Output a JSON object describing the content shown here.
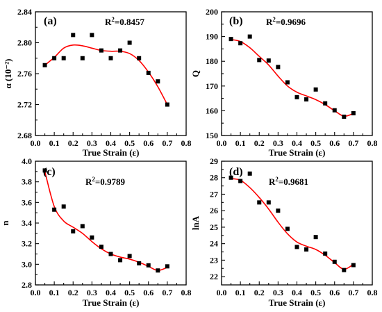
{
  "chart_data": [
    {
      "panel_label": "(a)",
      "type": "scatter",
      "xlabel": "True Strain (ε)",
      "ylabel": "α (10⁻²)",
      "r2_label": "R",
      "r2_sup": "2",
      "r2_value": "=0.8457",
      "xlim": [
        0.0,
        0.8
      ],
      "ylim": [
        2.68,
        2.84
      ],
      "xticks": [
        0.0,
        0.1,
        0.2,
        0.3,
        0.4,
        0.5,
        0.6,
        0.7,
        0.8
      ],
      "yticks": [
        2.68,
        2.72,
        2.76,
        2.8,
        2.84
      ],
      "xtick_labels": [
        "0.0",
        "0.1",
        "0.2",
        "0.3",
        "0.4",
        "0.5",
        "0.6",
        "0.7",
        "0.8"
      ],
      "ytick_labels": [
        "2.68",
        "2.72",
        "2.76",
        "2.80",
        "2.84"
      ],
      "x": [
        0.05,
        0.1,
        0.15,
        0.2,
        0.25,
        0.3,
        0.35,
        0.4,
        0.45,
        0.5,
        0.55,
        0.6,
        0.65,
        0.7
      ],
      "y": [
        2.771,
        2.78,
        2.78,
        2.81,
        2.78,
        2.81,
        2.79,
        2.78,
        2.79,
        2.8,
        2.78,
        2.761,
        2.75,
        2.72
      ],
      "fit": {
        "x": [
          0.05,
          0.1,
          0.15,
          0.2,
          0.25,
          0.3,
          0.35,
          0.4,
          0.45,
          0.5,
          0.55,
          0.6,
          0.65,
          0.7
        ],
        "y": [
          2.771,
          2.781,
          2.793,
          2.797,
          2.796,
          2.793,
          2.79,
          2.789,
          2.789,
          2.786,
          2.777,
          2.762,
          2.743,
          2.72
        ]
      }
    },
    {
      "panel_label": "(b)",
      "type": "scatter",
      "xlabel": "True Strain (ε)",
      "ylabel": "Q",
      "r2_label": "R",
      "r2_sup": "2",
      "r2_value": "=0.9696",
      "xlim": [
        0.0,
        0.8
      ],
      "ylim": [
        150,
        200
      ],
      "xticks": [
        0.0,
        0.1,
        0.2,
        0.3,
        0.4,
        0.5,
        0.6,
        0.7,
        0.8
      ],
      "yticks": [
        150,
        160,
        170,
        180,
        190,
        200
      ],
      "xtick_labels": [
        "0.0",
        "0.1",
        "0.2",
        "0.3",
        "0.4",
        "0.5",
        "0.6",
        "0.7",
        "0.8"
      ],
      "ytick_labels": [
        "150",
        "160",
        "170",
        "180",
        "190",
        "200"
      ],
      "x": [
        0.05,
        0.1,
        0.15,
        0.2,
        0.25,
        0.3,
        0.35,
        0.4,
        0.45,
        0.5,
        0.55,
        0.6,
        0.65,
        0.7
      ],
      "y": [
        189.0,
        187.3,
        190.0,
        180.5,
        180.3,
        177.7,
        171.5,
        165.5,
        164.6,
        168.6,
        163.0,
        160.2,
        157.6,
        159.0
      ],
      "fit": {
        "x": [
          0.05,
          0.1,
          0.15,
          0.2,
          0.25,
          0.3,
          0.35,
          0.4,
          0.45,
          0.5,
          0.55,
          0.6,
          0.65,
          0.7
        ],
        "y": [
          188.8,
          188.0,
          185.5,
          182.0,
          178.5,
          174.0,
          170.0,
          167.5,
          166.0,
          164.5,
          162.5,
          160.0,
          157.8,
          158.9
        ]
      }
    },
    {
      "panel_label": "(c)",
      "type": "scatter",
      "xlabel": "True Strain (ε)",
      "ylabel": "n",
      "r2_label": "R",
      "r2_sup": "2",
      "r2_value": "=0.9789",
      "xlim": [
        0.0,
        0.8
      ],
      "ylim": [
        2.8,
        4.0
      ],
      "xticks": [
        0.0,
        0.1,
        0.2,
        0.3,
        0.4,
        0.5,
        0.6,
        0.7,
        0.8
      ],
      "yticks": [
        2.8,
        3.0,
        3.2,
        3.4,
        3.6,
        3.8,
        4.0
      ],
      "xtick_labels": [
        "0.0",
        "0.1",
        "0.2",
        "0.3",
        "0.4",
        "0.5",
        "0.6",
        "0.7",
        "0.8"
      ],
      "ytick_labels": [
        "2.8",
        "3.0",
        "3.2",
        "3.4",
        "3.6",
        "3.8",
        "4.0"
      ],
      "x": [
        0.05,
        0.1,
        0.15,
        0.2,
        0.25,
        0.3,
        0.35,
        0.4,
        0.45,
        0.5,
        0.55,
        0.6,
        0.65,
        0.7
      ],
      "y": [
        3.91,
        3.53,
        3.56,
        3.32,
        3.37,
        3.26,
        3.17,
        3.1,
        3.04,
        3.08,
        3.01,
        2.99,
        2.94,
        2.98
      ],
      "fit": {
        "x": [
          0.05,
          0.1,
          0.15,
          0.2,
          0.25,
          0.3,
          0.35,
          0.4,
          0.45,
          0.5,
          0.55,
          0.6,
          0.65,
          0.7
        ],
        "y": [
          3.9,
          3.56,
          3.42,
          3.36,
          3.3,
          3.22,
          3.15,
          3.1,
          3.07,
          3.05,
          3.02,
          2.98,
          2.94,
          2.97
        ]
      }
    },
    {
      "panel_label": "(d)",
      "type": "scatter",
      "xlabel": "True Strain (ε)",
      "ylabel": "lnA",
      "r2_label": "R",
      "r2_sup": "2",
      "r2_value": "=0.9681",
      "xlim": [
        0.0,
        0.8
      ],
      "ylim": [
        21.5,
        29.0
      ],
      "xticks": [
        0.0,
        0.1,
        0.2,
        0.3,
        0.4,
        0.5,
        0.6,
        0.7,
        0.8
      ],
      "yticks": [
        22,
        23,
        24,
        25,
        26,
        27,
        28,
        29
      ],
      "xtick_labels": [
        "0.0",
        "0.1",
        "0.2",
        "0.3",
        "0.4",
        "0.5",
        "0.6",
        "0.7",
        "0.8"
      ],
      "ytick_labels": [
        "22",
        "23",
        "24",
        "25",
        "26",
        "27",
        "28",
        "29"
      ],
      "x": [
        0.05,
        0.1,
        0.15,
        0.2,
        0.25,
        0.3,
        0.35,
        0.4,
        0.45,
        0.5,
        0.55,
        0.6,
        0.65,
        0.7
      ],
      "y": [
        28.0,
        27.8,
        28.25,
        26.5,
        26.5,
        26.0,
        24.9,
        23.8,
        23.65,
        24.4,
        23.4,
        22.9,
        22.4,
        22.7
      ],
      "fit": {
        "x": [
          0.05,
          0.1,
          0.15,
          0.2,
          0.25,
          0.3,
          0.35,
          0.4,
          0.45,
          0.5,
          0.55,
          0.6,
          0.65,
          0.7
        ],
        "y": [
          27.95,
          27.85,
          27.4,
          26.8,
          26.1,
          25.3,
          24.6,
          24.1,
          23.85,
          23.65,
          23.3,
          22.85,
          22.45,
          22.75
        ]
      }
    }
  ]
}
